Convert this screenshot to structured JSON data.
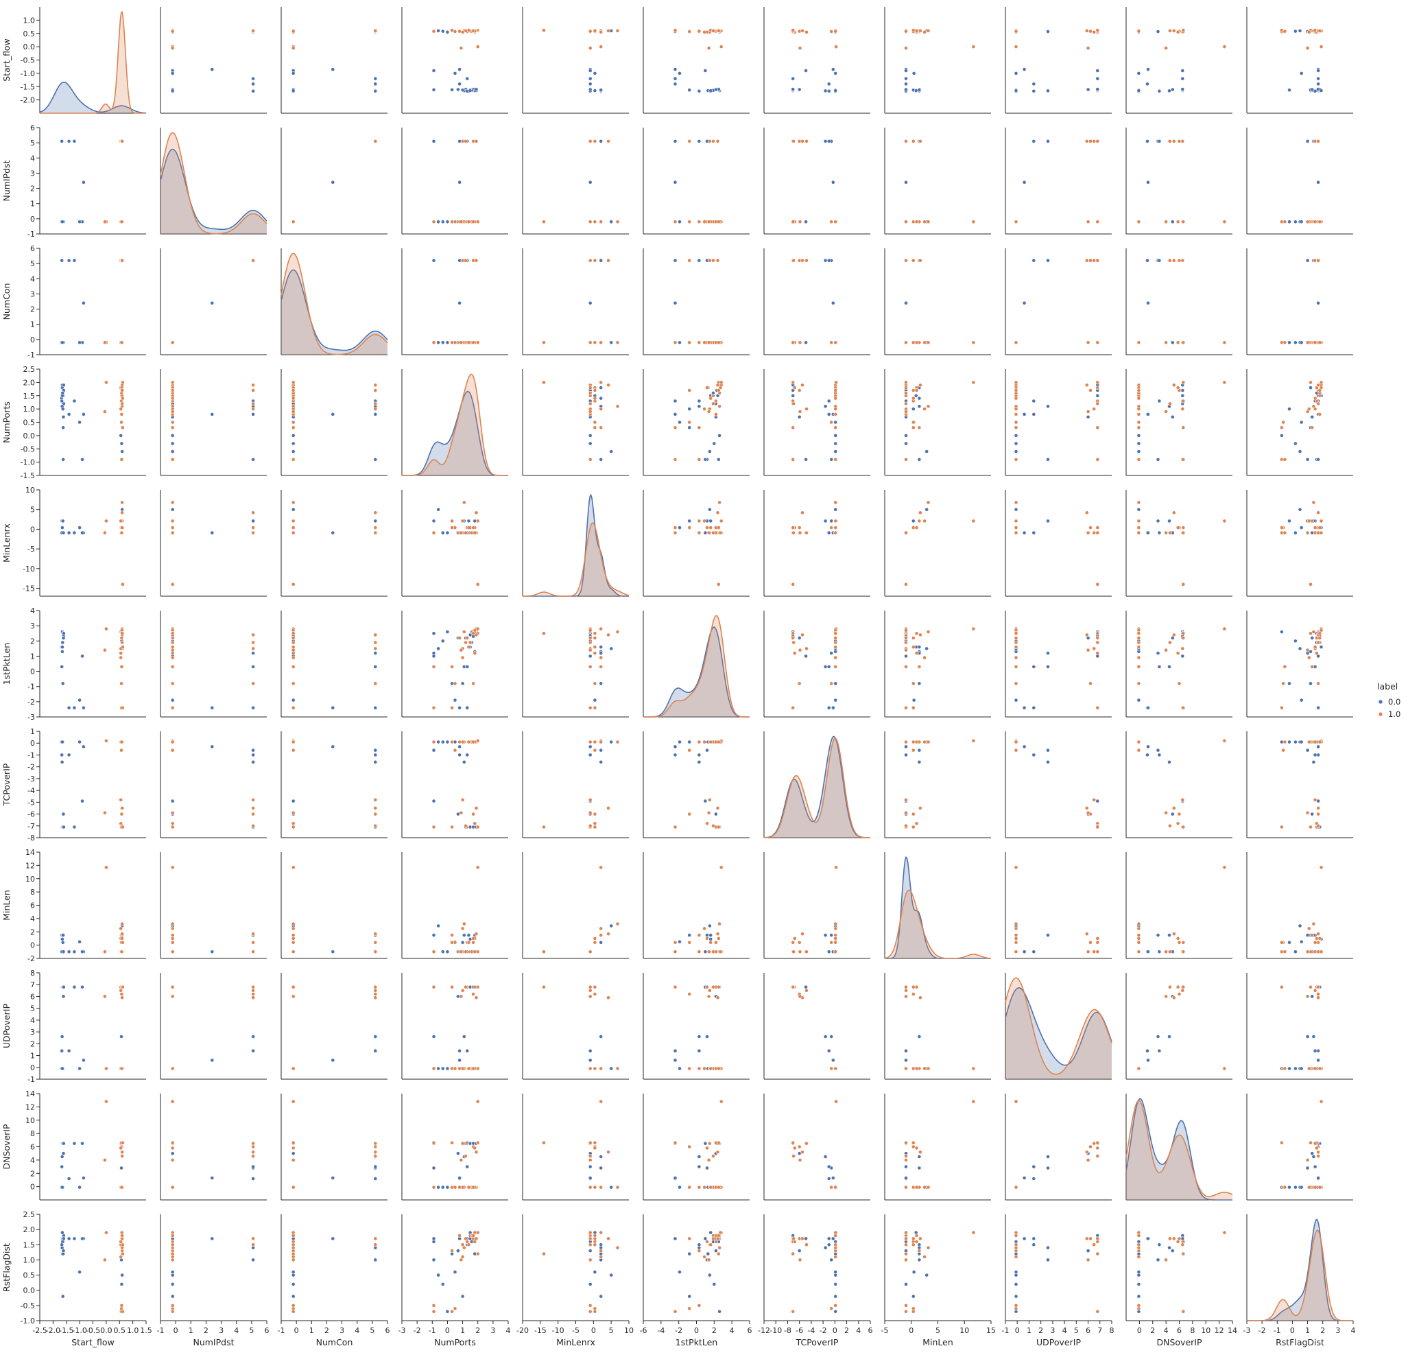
{
  "chart_data": {
    "type": "scatter",
    "subtype": "pairplot",
    "variables": [
      "Start_flow",
      "NumIPdst",
      "NumCon",
      "NumPorts",
      "MinLenrx",
      "1stPktLen",
      "TCPoverIP",
      "MinLen",
      "UDPoverIP",
      "DNSoverIP",
      "RstFlagDist"
    ],
    "hue": {
      "title": "label",
      "classes": [
        {
          "name": "0.0",
          "color": "#4c72b0"
        },
        {
          "name": "1.0",
          "color": "#dd8452"
        }
      ]
    },
    "legend_position": "right",
    "diagonal": "kde",
    "grid": false,
    "axes": {
      "Start_flow": {
        "lim": [
          -2.5,
          1.5
        ],
        "ticks": [
          "-2.5",
          "-2.0",
          "-1.5",
          "-1.0",
          "-0.5",
          "0.0",
          "0.5",
          "1.0",
          "1.5"
        ],
        "ytick_labels": [
          "-2.0",
          "-1.5",
          "-1.0",
          "-0.5",
          "0.0",
          "0.5",
          "1.0"
        ]
      },
      "NumIPdst": {
        "lim": [
          -1,
          6
        ],
        "ticks": [
          "-1",
          "0",
          "1",
          "2",
          "3",
          "4",
          "5",
          "6"
        ]
      },
      "NumCon": {
        "lim": [
          -1,
          6
        ],
        "ticks": [
          "-1",
          "0",
          "1",
          "2",
          "3",
          "4",
          "5",
          "6"
        ]
      },
      "NumPorts": {
        "lim": [
          -3,
          4
        ],
        "ticks": [
          "-3",
          "-2",
          "-1",
          "0",
          "1",
          "2",
          "3",
          "4"
        ],
        "ylim": [
          -1.5,
          2.5
        ],
        "yticks": [
          "-1.5",
          "-1.0",
          "-0.5",
          "0.0",
          "0.5",
          "1.0",
          "1.5",
          "2.0",
          "2.5"
        ]
      },
      "MinLenrx": {
        "lim": [
          -20,
          10
        ],
        "ticks": [
          "-20",
          "-15",
          "-10",
          "-5",
          "0",
          "5",
          "10"
        ],
        "ylim": [
          -17,
          10
        ],
        "yticks": [
          "-15",
          "-10",
          "-5",
          "0",
          "5",
          "10"
        ]
      },
      "1stPktLen": {
        "lim": [
          -6,
          6
        ],
        "ticks": [
          "-6",
          "-4",
          "-2",
          "0",
          "2",
          "4",
          "6"
        ],
        "ylim": [
          -3,
          4
        ],
        "yticks": [
          "-3",
          "-2",
          "-1",
          "0",
          "1",
          "2",
          "3",
          "4"
        ]
      },
      "TCPoverIP": {
        "lim": [
          -12,
          6
        ],
        "ticks": [
          "-12",
          "-10",
          "-8",
          "-6",
          "-4",
          "-2",
          "0",
          "2",
          "4",
          "6"
        ],
        "ylim": [
          -8,
          1
        ],
        "yticks": [
          "-8",
          "-7",
          "-6",
          "-5",
          "-4",
          "-3",
          "-2",
          "-1",
          "0",
          "1"
        ]
      },
      "MinLen": {
        "lim": [
          -5,
          15
        ],
        "ticks": [
          "-5",
          "0",
          "5",
          "10",
          "15"
        ],
        "ylim": [
          -2,
          14
        ],
        "yticks": [
          "-2",
          "0",
          "2",
          "4",
          "6",
          "8",
          "10",
          "12",
          "14"
        ]
      },
      "UDPoverIP": {
        "lim": [
          -1,
          8
        ],
        "ticks": [
          "-1",
          "0",
          "1",
          "2",
          "3",
          "4",
          "5",
          "6",
          "7",
          "8"
        ]
      },
      "DNSoverIP": {
        "lim": [
          -2,
          14
        ],
        "ticks": [
          "0",
          "2",
          "4",
          "6",
          "8",
          "10",
          "12",
          "14"
        ]
      },
      "RstFlagDist": {
        "lim": [
          -3,
          4
        ],
        "ticks": [
          "-3",
          "-2",
          "-1",
          "0",
          "1",
          "2",
          "3",
          "4"
        ],
        "ylim": [
          -1.0,
          2.5
        ],
        "yticks": [
          "-1.0",
          "-0.5",
          "0.0",
          "0.5",
          "1.0",
          "1.5",
          "2.0",
          "2.5"
        ]
      }
    },
    "samples": {
      "0.0": {
        "Start_flow": [
          -1.65,
          -1.62,
          -1.6,
          -1.4,
          -0.85,
          -1.65,
          -1.68,
          -1.62,
          -1.6,
          -1.66,
          -1.64,
          -1.62,
          0.55,
          0.58,
          0.6,
          0.57,
          -1.6,
          -1.67,
          -1.63,
          -1.61,
          -1.65,
          -1.2,
          -0.9,
          -1.0
        ],
        "NumIPdst": [
          -0.2,
          -0.2,
          -0.2,
          5.1,
          2.4,
          -0.2,
          -0.2,
          -0.2,
          -0.2,
          5.1,
          -0.2,
          -0.2,
          -0.2,
          -0.2,
          -0.2,
          5.1,
          -0.2,
          5.1,
          -0.2,
          -0.2,
          -0.2,
          5.1,
          -0.2,
          -0.2
        ],
        "NumCon": [
          -0.2,
          -0.2,
          -0.2,
          5.2,
          2.4,
          -0.2,
          -0.2,
          -0.2,
          -0.2,
          5.2,
          -0.2,
          -0.2,
          -0.2,
          -0.2,
          -0.2,
          5.2,
          -0.2,
          5.2,
          -0.2,
          -0.2,
          -0.2,
          5.2,
          -0.2,
          -0.2
        ],
        "NumPorts": [
          1.9,
          1.5,
          1.2,
          0.8,
          0.8,
          1.8,
          1.4,
          -0.9,
          1.7,
          1.1,
          1.6,
          0.3,
          0.0,
          -0.3,
          -0.6,
          -0.9,
          1.9,
          1.3,
          1.0,
          0.7,
          1.5,
          1.3,
          -0.9,
          0.5
        ],
        "MinLenrx": [
          -0.9,
          -0.9,
          -0.9,
          -0.9,
          -0.9,
          2.1,
          2.1,
          -0.9,
          -0.9,
          2.1,
          -0.9,
          2.1,
          -0.9,
          -0.9,
          5.0,
          2.1,
          -0.9,
          -0.9,
          2.1,
          -0.9,
          0.4,
          -0.9,
          -0.9,
          0.4
        ],
        "1stPktLen": [
          2.6,
          2.4,
          2.2,
          -2.4,
          -2.4,
          1.3,
          1.6,
          2.5,
          2.3,
          0.3,
          1.9,
          -0.8,
          2.6,
          2.0,
          1.5,
          1.2,
          2.5,
          0.3,
          -0.8,
          2.2,
          1.6,
          -2.4,
          1.0,
          -1.9
        ],
        "TCPoverIP": [
          -7.1,
          -7.1,
          -7.1,
          -1.0,
          -0.3,
          0.1,
          0.1,
          -7.1,
          -7.1,
          -1.6,
          0.1,
          0.1,
          0.1,
          0.1,
          0.1,
          -0.6,
          -7.1,
          -1.0,
          0.1,
          -6.0,
          0.1,
          -7.1,
          -4.9,
          0.1
        ],
        "MinLen": [
          -1.0,
          -1.0,
          -1.0,
          -1.0,
          -1.0,
          1.5,
          1.5,
          -1.0,
          -1.0,
          1.5,
          -1.0,
          1.5,
          -1.0,
          -1.0,
          2.9,
          1.5,
          -1.0,
          -1.0,
          0.4,
          -1.0,
          0.9,
          -1.0,
          -1.0,
          0.5
        ],
        "UDPoverIP": [
          6.8,
          6.8,
          6.8,
          1.4,
          0.6,
          -0.1,
          -0.1,
          6.8,
          6.8,
          2.6,
          -0.1,
          -0.1,
          -0.1,
          -0.1,
          -0.1,
          2.6,
          6.8,
          1.4,
          -0.1,
          6.0,
          -0.1,
          6.8,
          6.8,
          -0.1
        ],
        "DNSoverIP": [
          6.5,
          6.5,
          6.5,
          1.2,
          1.3,
          -0.1,
          -0.1,
          6.5,
          6.5,
          4.5,
          -0.1,
          -0.1,
          -0.1,
          -0.1,
          -0.1,
          2.8,
          6.5,
          3.0,
          -0.1,
          5.0,
          -0.1,
          6.5,
          6.5,
          -0.1
        ],
        "RstFlagDist": [
          1.7,
          1.7,
          1.7,
          1.7,
          1.7,
          1.2,
          1.5,
          1.6,
          1.8,
          1.4,
          1.6,
          1.2,
          -0.7,
          0.2,
          0.5,
          1.0,
          1.7,
          1.5,
          -0.2,
          1.3,
          1.9,
          1.7,
          1.7,
          0.6
        ]
      },
      "1.0": {
        "Start_flow": [
          0.58,
          0.6,
          0.57,
          0.55,
          0.6,
          0.62,
          0.58,
          0.59,
          0.6,
          0.57,
          0.55,
          0.58,
          0.0,
          0.62,
          0.6,
          0.57,
          0.58,
          0.6,
          0.55,
          0.59,
          0.62,
          -0.05,
          0.6,
          0.58
        ],
        "NumIPdst": [
          -0.2,
          -0.2,
          -0.2,
          5.1,
          -0.2,
          -0.2,
          5.1,
          -0.2,
          -0.2,
          -0.2,
          -0.2,
          -0.2,
          -0.2,
          -0.2,
          5.1,
          -0.2,
          -0.2,
          5.1,
          -0.2,
          -0.2,
          -0.2,
          -0.2,
          -0.2,
          -0.2
        ],
        "NumCon": [
          -0.2,
          -0.2,
          -0.2,
          5.2,
          -0.2,
          -0.2,
          5.2,
          -0.2,
          -0.2,
          -0.2,
          -0.2,
          -0.2,
          -0.2,
          -0.2,
          5.2,
          -0.2,
          -0.2,
          5.2,
          -0.2,
          -0.2,
          -0.2,
          -0.2,
          -0.2,
          -0.2
        ],
        "NumPorts": [
          1.6,
          1.9,
          1.3,
          1.0,
          0.3,
          2.0,
          1.7,
          1.5,
          1.1,
          -0.9,
          1.8,
          0.8,
          2.0,
          1.4,
          1.9,
          0.5,
          1.6,
          1.2,
          1.0,
          1.8,
          0.3,
          0.9,
          1.7,
          -0.9
        ],
        "MinLenrx": [
          -0.9,
          -0.9,
          0.4,
          -0.9,
          2.1,
          -14.0,
          0.4,
          -0.9,
          6.8,
          -0.9,
          0.4,
          -0.9,
          2.1,
          0.4,
          4.2,
          0.4,
          -0.9,
          -0.9,
          2.1,
          -0.9,
          0.4,
          -0.9,
          0.4,
          -0.9
        ],
        "1stPktLen": [
          2.6,
          2.8,
          2.2,
          1.5,
          0.3,
          2.5,
          -0.8,
          1.9,
          2.6,
          -2.4,
          1.2,
          2.2,
          2.8,
          1.6,
          2.4,
          -0.8,
          2.6,
          1.9,
          0.9,
          2.7,
          -2.4,
          1.4,
          2.5,
          0.3
        ],
        "TCPoverIP": [
          0.1,
          0.1,
          -7.1,
          -4.8,
          0.1,
          -7.1,
          -6.0,
          0.1,
          0.1,
          -7.1,
          -6.8,
          0.1,
          0.2,
          0.1,
          -5.5,
          -0.6,
          0.1,
          -7.0,
          0.1,
          0.1,
          -7.1,
          -5.9,
          0.1,
          0.1
        ],
        "MinLen": [
          -1.0,
          -1.0,
          0.4,
          -1.0,
          1.5,
          -1.0,
          0.4,
          -1.0,
          3.2,
          -1.0,
          1.0,
          -1.0,
          11.7,
          0.4,
          1.7,
          0.4,
          -1.0,
          -1.0,
          2.5,
          -1.0,
          0.4,
          -1.0,
          1.0,
          -1.0
        ],
        "UDPoverIP": [
          -0.1,
          -0.1,
          6.8,
          6.5,
          -0.1,
          6.8,
          6.2,
          -0.1,
          -0.1,
          6.8,
          6.8,
          -0.1,
          -0.1,
          -0.1,
          5.9,
          -0.1,
          -0.1,
          6.8,
          -0.1,
          -0.1,
          6.8,
          6.0,
          -0.1,
          -0.1
        ],
        "DNSoverIP": [
          -0.1,
          -0.1,
          6.6,
          6.5,
          -0.1,
          6.6,
          6.0,
          -0.1,
          -0.1,
          6.6,
          5.8,
          -0.1,
          12.8,
          -0.1,
          5.2,
          -0.1,
          -0.1,
          4.6,
          -0.1,
          -0.1,
          6.6,
          4.0,
          -0.1,
          -0.1
        ],
        "RstFlagDist": [
          1.8,
          1.9,
          1.6,
          1.5,
          1.3,
          1.2,
          1.7,
          1.8,
          1.4,
          -0.7,
          1.6,
          1.8,
          1.9,
          1.5,
          1.7,
          -0.6,
          1.8,
          1.7,
          1.1,
          1.9,
          -0.7,
          1.0,
          1.8,
          -0.5
        ]
      }
    }
  }
}
